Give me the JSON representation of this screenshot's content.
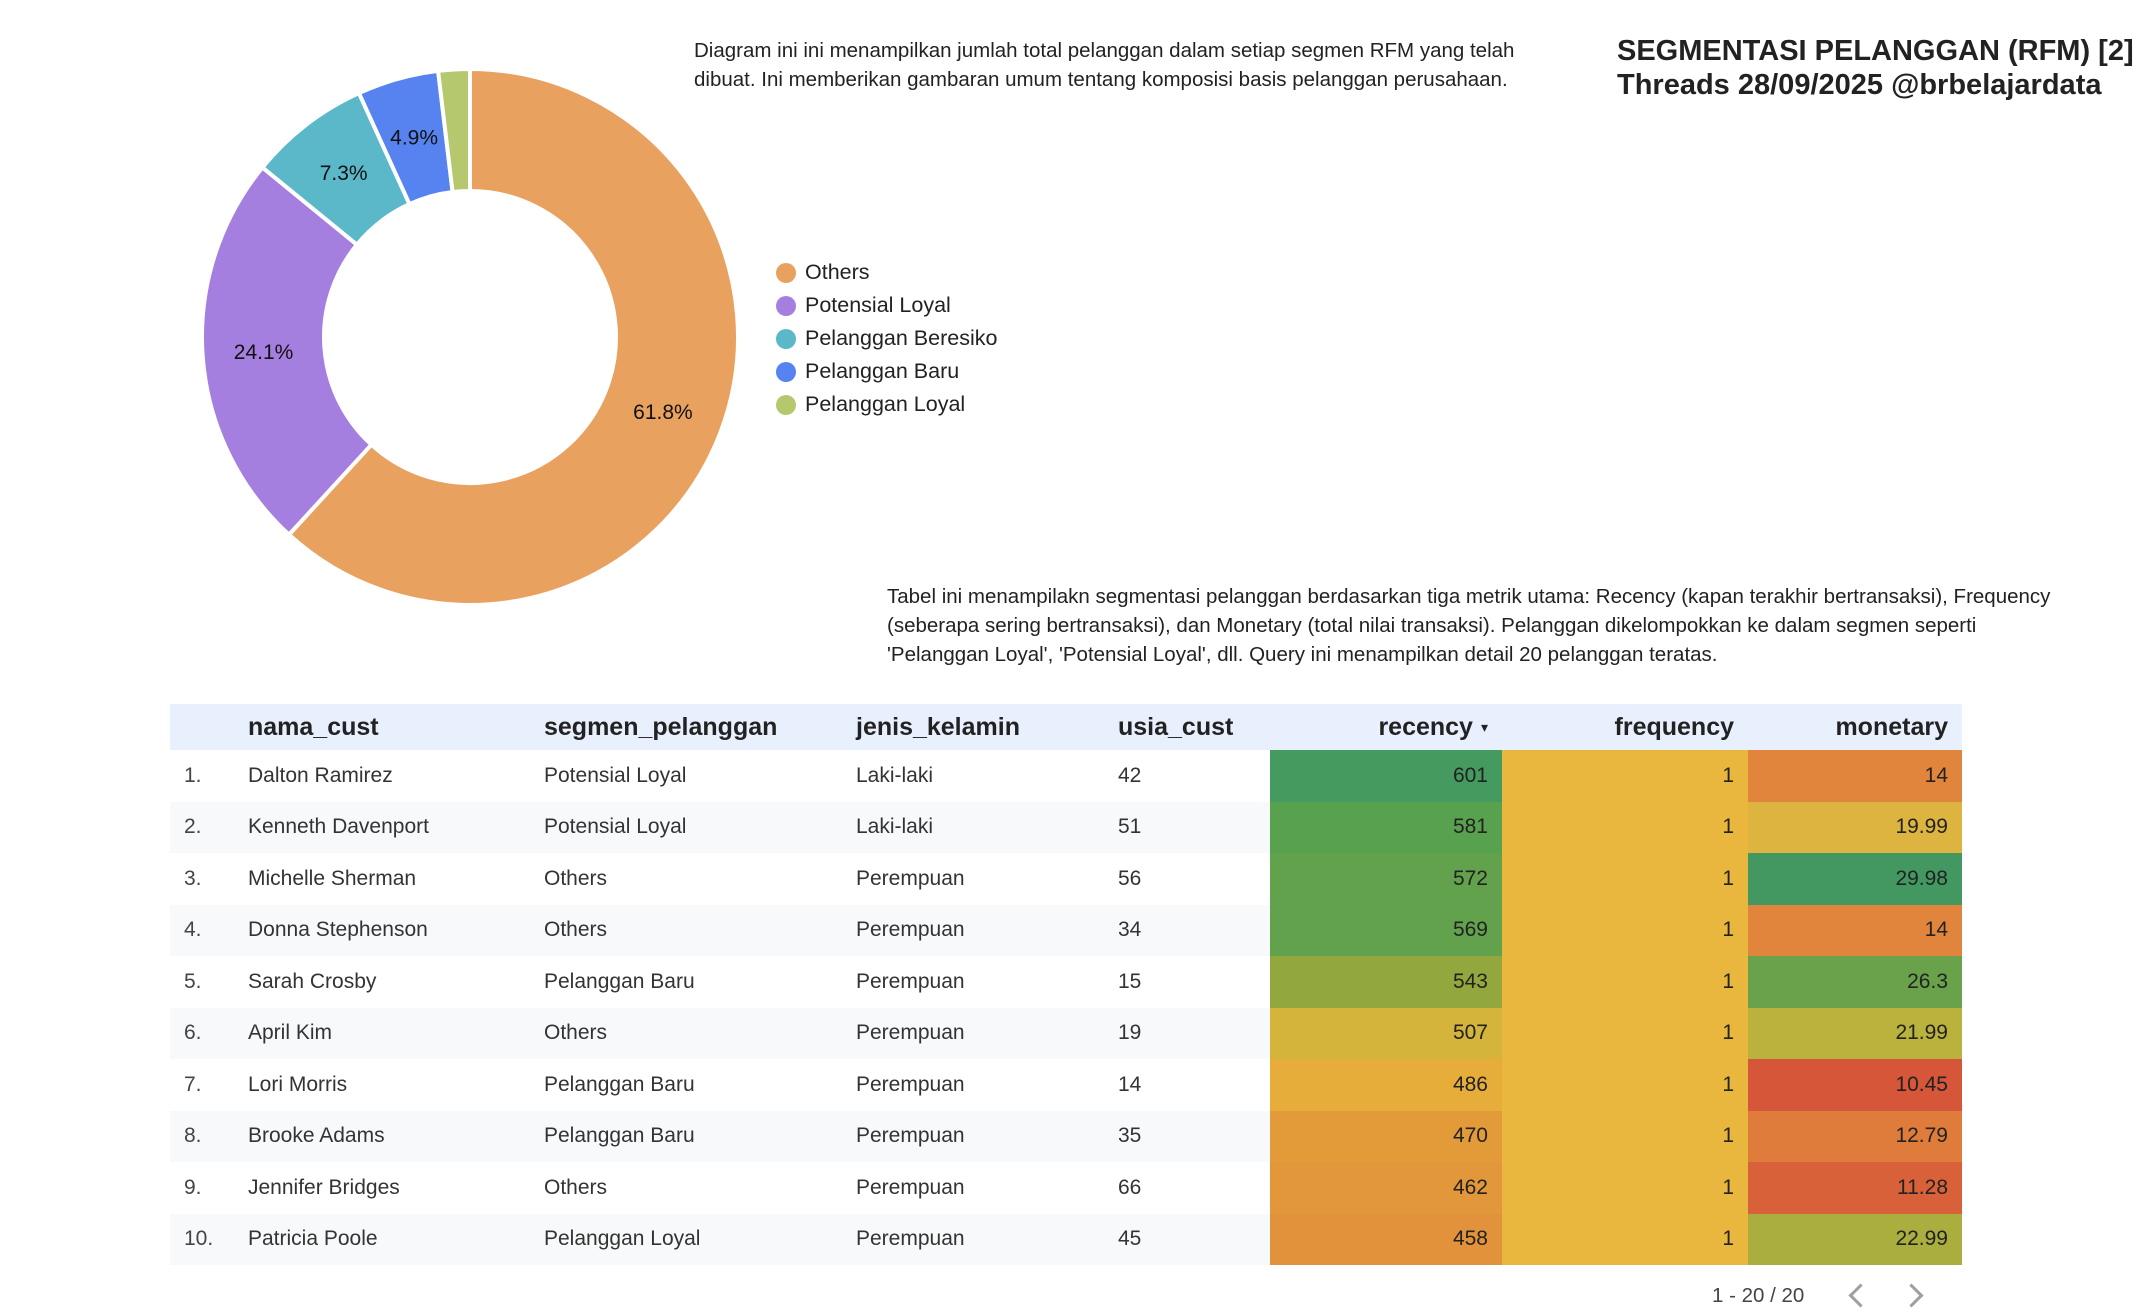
{
  "header": {
    "title_line1": "SEGMENTASI PELANGGAN (RFM) [2]",
    "title_line2": "Threads 28/09/2025 @brbelajardata"
  },
  "chart_description": "Diagram ini ini menampilkan jumlah total pelanggan dalam setiap segmen RFM yang telah dibuat. Ini memberikan gambaran umum tentang komposisi basis pelanggan perusahaan.",
  "table_description": "Tabel ini menampilakn segmentasi pelanggan berdasarkan tiga metrik utama: Recency (kapan terakhir bertransaksi), Frequency (seberapa sering bertransaksi), dan Monetary (total nilai transaksi). Pelanggan dikelompokkan ke dalam segmen seperti 'Pelanggan Loyal', 'Potensial Loyal', dll. Query ini menampilkan detail 20 pelanggan teratas.",
  "chart_data": {
    "type": "pie",
    "variant": "donut",
    "legend_position": "right",
    "slices": [
      {
        "name": "Others",
        "value": 61.8,
        "label": "61.8%",
        "color": "#e9a15f"
      },
      {
        "name": "Potensial Loyal",
        "value": 24.1,
        "label": "24.1%",
        "color": "#a57fdf"
      },
      {
        "name": "Pelanggan Beresiko",
        "value": 7.3,
        "label": "7.3%",
        "color": "#5bb8c8"
      },
      {
        "name": "Pelanggan Baru",
        "value": 4.9,
        "label": "4.9%",
        "color": "#5683ef"
      },
      {
        "name": "Pelanggan Loyal",
        "value": 1.9,
        "label": "",
        "color": "#b5c86e"
      }
    ]
  },
  "table": {
    "columns": [
      "nama_cust",
      "segmen_pelanggan",
      "jenis_kelamin",
      "usia_cust",
      "recency",
      "frequency",
      "monetary"
    ],
    "sort_indicator": "▾",
    "rows": [
      {
        "rank": "1.",
        "nama_cust": "Dalton Ramirez",
        "segmen_pelanggan": "Potensial Loyal",
        "jenis_kelamin": "Laki-laki",
        "usia_cust": "42",
        "recency": "601",
        "frequency": "1",
        "monetary": "14",
        "recency_color": "#459a5f",
        "monetary_color": "#e2853c"
      },
      {
        "rank": "2.",
        "nama_cust": "Kenneth Davenport",
        "segmen_pelanggan": "Potensial Loyal",
        "jenis_kelamin": "Laki-laki",
        "usia_cust": "51",
        "recency": "581",
        "frequency": "1",
        "monetary": "19.99",
        "recency_color": "#58a14f",
        "monetary_color": "#dcb43f"
      },
      {
        "rank": "3.",
        "nama_cust": "Michelle Sherman",
        "segmen_pelanggan": "Others",
        "jenis_kelamin": "Perempuan",
        "usia_cust": "56",
        "recency": "572",
        "frequency": "1",
        "monetary": "29.98",
        "recency_color": "#62a24c",
        "monetary_color": "#429860"
      },
      {
        "rank": "4.",
        "nama_cust": "Donna Stephenson",
        "segmen_pelanggan": "Others",
        "jenis_kelamin": "Perempuan",
        "usia_cust": "34",
        "recency": "569",
        "frequency": "1",
        "monetary": "14",
        "recency_color": "#62a24c",
        "monetary_color": "#e2853c"
      },
      {
        "rank": "5.",
        "nama_cust": "Sarah Crosby",
        "segmen_pelanggan": "Pelanggan Baru",
        "jenis_kelamin": "Perempuan",
        "usia_cust": "15",
        "recency": "543",
        "frequency": "1",
        "monetary": "26.3",
        "recency_color": "#92a83f",
        "monetary_color": "#6aa14b"
      },
      {
        "rank": "6.",
        "nama_cust": "April Kim",
        "segmen_pelanggan": "Others",
        "jenis_kelamin": "Perempuan",
        "usia_cust": "19",
        "recency": "507",
        "frequency": "1",
        "monetary": "21.99",
        "recency_color": "#d4b43b",
        "monetary_color": "#b9b23d"
      },
      {
        "rank": "7.",
        "nama_cust": "Lori Morris",
        "segmen_pelanggan": "Pelanggan Baru",
        "jenis_kelamin": "Perempuan",
        "usia_cust": "14",
        "recency": "486",
        "frequency": "1",
        "monetary": "10.45",
        "recency_color": "#e6ad3a",
        "monetary_color": "#d6563a"
      },
      {
        "rank": "8.",
        "nama_cust": "Brooke Adams",
        "segmen_pelanggan": "Pelanggan Baru",
        "jenis_kelamin": "Perempuan",
        "usia_cust": "35",
        "recency": "470",
        "frequency": "1",
        "monetary": "12.79",
        "recency_color": "#e39b3a",
        "monetary_color": "#df7c3b"
      },
      {
        "rank": "9.",
        "nama_cust": "Jennifer Bridges",
        "segmen_pelanggan": "Others",
        "jenis_kelamin": "Perempuan",
        "usia_cust": "66",
        "recency": "462",
        "frequency": "1",
        "monetary": "11.28",
        "recency_color": "#e2973a",
        "monetary_color": "#d8613a"
      },
      {
        "rank": "10.",
        "nama_cust": "Patricia Poole",
        "segmen_pelanggan": "Pelanggan Loyal",
        "jenis_kelamin": "Perempuan",
        "usia_cust": "45",
        "recency": "458",
        "frequency": "1",
        "monetary": "22.99",
        "recency_color": "#e2923a",
        "monetary_color": "#a9ae3e"
      }
    ],
    "frequency_color": "#e9b73d"
  },
  "pagination": {
    "range_text": "1 - 20 / 20"
  }
}
